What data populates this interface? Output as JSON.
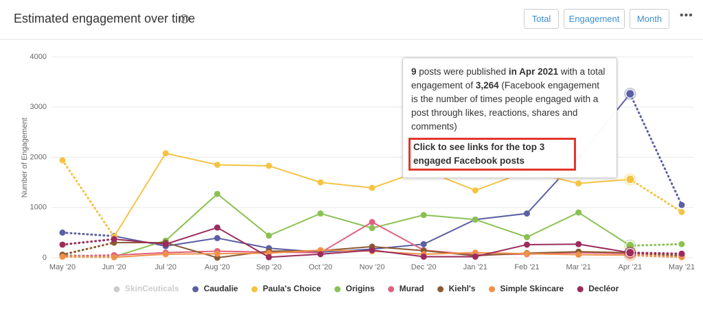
{
  "header": {
    "title": "Estimated engagement over time",
    "buttons": [
      "Total",
      "Engagement",
      "Month"
    ]
  },
  "tooltip": {
    "parts": [
      "9",
      " posts were published ",
      "in Apr 2021",
      " with a total engagement of ",
      "3,264",
      " (Facebook engagement is the number of times people engaged with a post through likes, reactions, shares and comments)"
    ],
    "link": "Click to see links for the top 3 engaged Facebook posts"
  },
  "chart_data": {
    "type": "line",
    "y_label": "Number of Engagement",
    "categories": [
      "May '20",
      "Jun '20",
      "Jul '20",
      "Aug '20",
      "Sep '20",
      "Oct '20",
      "Nov '20",
      "Dec '20",
      "Jan '21",
      "Feb '21",
      "Mar '21",
      "Apr '21",
      "May '21"
    ],
    "ylim": [
      0,
      4000
    ],
    "yticks": [
      0,
      1000,
      2000,
      3000,
      4000
    ],
    "grid": true,
    "series": [
      {
        "name": "SkinCeuticals",
        "color": "#cccccc",
        "visible": false
      },
      {
        "name": "Caudalie",
        "color": "#5b5fa3",
        "values": [
          500,
          430,
          230,
          390,
          190,
          110,
          170,
          270,
          760,
          880,
          2000,
          3264,
          1050
        ]
      },
      {
        "name": "Paula's Choice",
        "color": "#f5c343",
        "values": [
          1940,
          420,
          2080,
          1850,
          1830,
          1500,
          1390,
          1750,
          1340,
          1720,
          1480,
          1560,
          910
        ]
      },
      {
        "name": "Origins",
        "color": "#8bc153",
        "values": [
          50,
          20,
          340,
          1270,
          440,
          880,
          590,
          850,
          760,
          410,
          900,
          240,
          270
        ]
      },
      {
        "name": "Murad",
        "color": "#e0607e",
        "values": [
          30,
          50,
          100,
          130,
          110,
          100,
          710,
          150,
          60,
          70,
          100,
          80,
          30
        ]
      },
      {
        "name": "Kiehl's",
        "color": "#8a5a33",
        "values": [
          60,
          300,
          300,
          0,
          130,
          140,
          220,
          140,
          40,
          90,
          120,
          100,
          40
        ]
      },
      {
        "name": "Simple Skincare",
        "color": "#f0914a",
        "values": [
          20,
          10,
          70,
          80,
          90,
          150,
          130,
          70,
          100,
          80,
          60,
          50,
          10
        ]
      },
      {
        "name": "Decléor",
        "color": "#9b2c5c",
        "values": [
          260,
          370,
          270,
          600,
          10,
          70,
          150,
          20,
          20,
          260,
          270,
          100,
          80
        ]
      }
    ]
  }
}
